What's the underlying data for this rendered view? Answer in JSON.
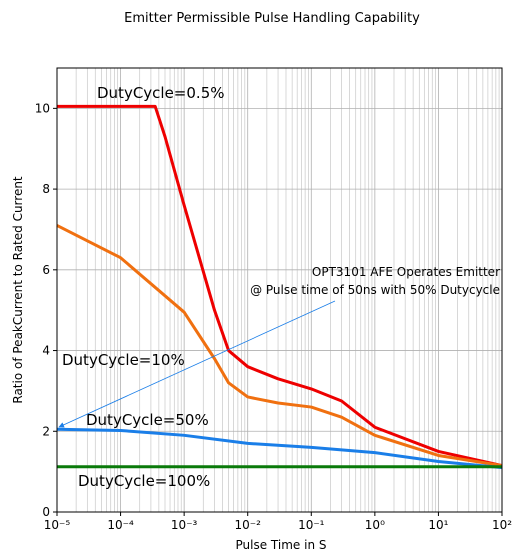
{
  "chart_data": {
    "type": "line",
    "title": "Emitter Permissible Pulse Handling Capability",
    "xlabel": "Pulse Time in S",
    "ylabel": "Ratio of PeakCurrent to Rated Current",
    "xscale": "log",
    "xlim": [
      1e-05,
      100
    ],
    "ylim": [
      0,
      11
    ],
    "xticks": [
      {
        "value": 1e-05,
        "label": "10⁻⁵"
      },
      {
        "value": 0.0001,
        "label": "10⁻⁴"
      },
      {
        "value": 0.001,
        "label": "10⁻³"
      },
      {
        "value": 0.01,
        "label": "10⁻²"
      },
      {
        "value": 0.1,
        "label": "10⁻¹"
      },
      {
        "value": 1,
        "label": "10⁰"
      },
      {
        "value": 10,
        "label": "10¹"
      },
      {
        "value": 100,
        "label": "10²"
      }
    ],
    "yticks": [
      0,
      2,
      4,
      6,
      8,
      10
    ],
    "grid": true,
    "series": [
      {
        "name": "DutyCycle=0.5%",
        "color": "#ee0000",
        "x": [
          1e-05,
          0.0001,
          0.00035,
          0.0005,
          0.001,
          0.003,
          0.005,
          0.01,
          0.03,
          0.1,
          0.3,
          1,
          10,
          100
        ],
        "values": [
          10.05,
          10.05,
          10.05,
          9.3,
          7.6,
          5.0,
          4.0,
          3.6,
          3.3,
          3.05,
          2.75,
          2.1,
          1.5,
          1.15
        ]
      },
      {
        "name": "DutyCycle=10%",
        "color": "#f07010",
        "x": [
          1e-05,
          0.0001,
          0.001,
          0.003,
          0.005,
          0.01,
          0.03,
          0.1,
          0.3,
          1,
          10,
          100
        ],
        "values": [
          7.1,
          6.3,
          4.95,
          3.8,
          3.2,
          2.85,
          2.7,
          2.6,
          2.35,
          1.9,
          1.4,
          1.15
        ]
      },
      {
        "name": "DutyCycle=50%",
        "color": "#1a7ee8",
        "x": [
          1e-05,
          0.0001,
          0.001,
          0.01,
          0.1,
          1,
          10,
          100
        ],
        "values": [
          2.05,
          2.02,
          1.9,
          1.7,
          1.6,
          1.47,
          1.25,
          1.1
        ]
      },
      {
        "name": "DutyCycle=100%",
        "color": "#0a7a0a",
        "x": [
          1e-05,
          100
        ],
        "values": [
          1.12,
          1.12
        ]
      }
    ],
    "annotation": [
      "OPT3101 AFE Operates Emitter",
      "@ Pulse time of 50ns with 50% Dutycycle"
    ]
  }
}
